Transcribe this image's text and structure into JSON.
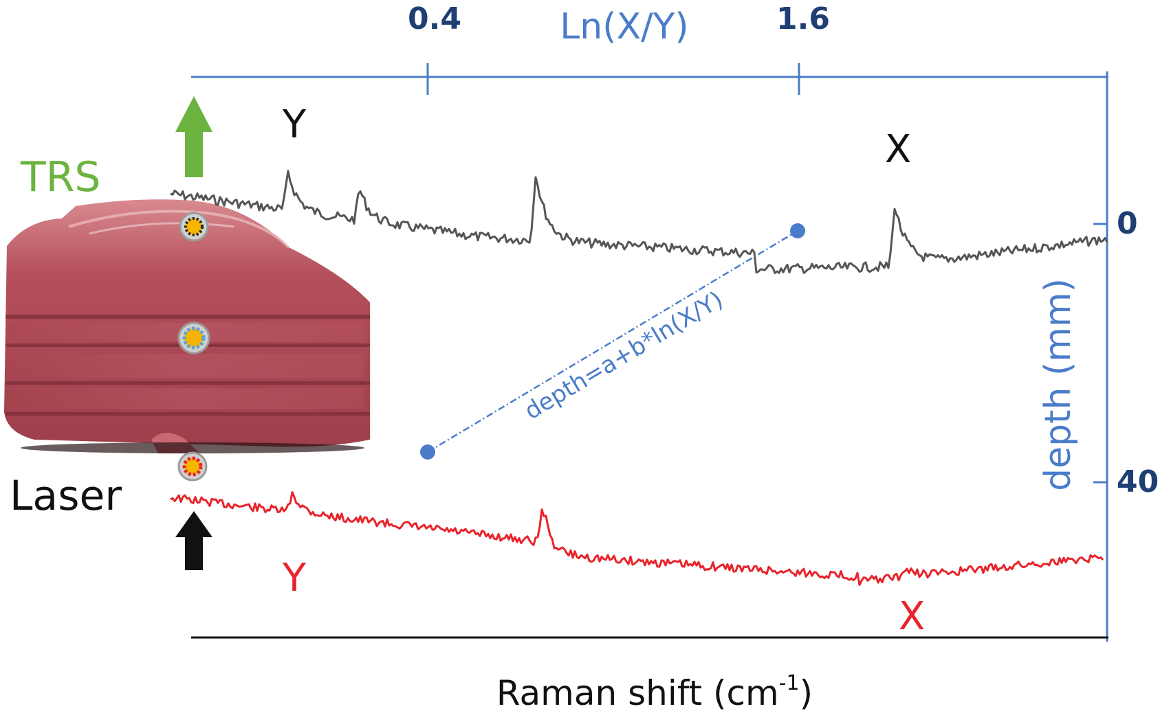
{
  "figure": {
    "top_axis": {
      "title": "Ln(X/Y)",
      "ticks": [
        "0.4",
        "1.6"
      ]
    },
    "right_axis": {
      "title": "depth (mm)",
      "ticks": [
        "0",
        "40"
      ]
    },
    "bottom_axis": {
      "title_main": "Raman shift (cm",
      "title_sup": "-1",
      "title_close": ")"
    },
    "labels": {
      "trs": "TRS",
      "laser": "Laser",
      "peak_y_top": "Y",
      "peak_x_top": "X",
      "peak_y_bottom": "Y",
      "peak_x_bottom": "X",
      "equation": "depth=a+b*ln(X/Y)"
    },
    "colors": {
      "axis_blue": "#4a7cc9",
      "tick_label_navy": "#1f3f73",
      "trs_green": "#6db33f",
      "top_spectrum_gray": "#555555",
      "bottom_spectrum_red": "#e8232a",
      "laser_arrow_black": "#111111",
      "meat_red": "#b5515e"
    },
    "calibration_points": [
      {
        "ln_ratio": 0.4,
        "depth_mm": 40
      },
      {
        "ln_ratio": 1.6,
        "depth_mm": 0
      }
    ],
    "spectra": [
      {
        "name": "",
        "position": "top",
        "color_key": "top_spectrum_gray",
        "peaks": [
          "Y",
          "X"
        ]
      },
      {
        "name": "",
        "position": "bottom",
        "color_key": "bottom_spectrum_red",
        "peaks": [
          "Y",
          "X"
        ]
      }
    ]
  }
}
